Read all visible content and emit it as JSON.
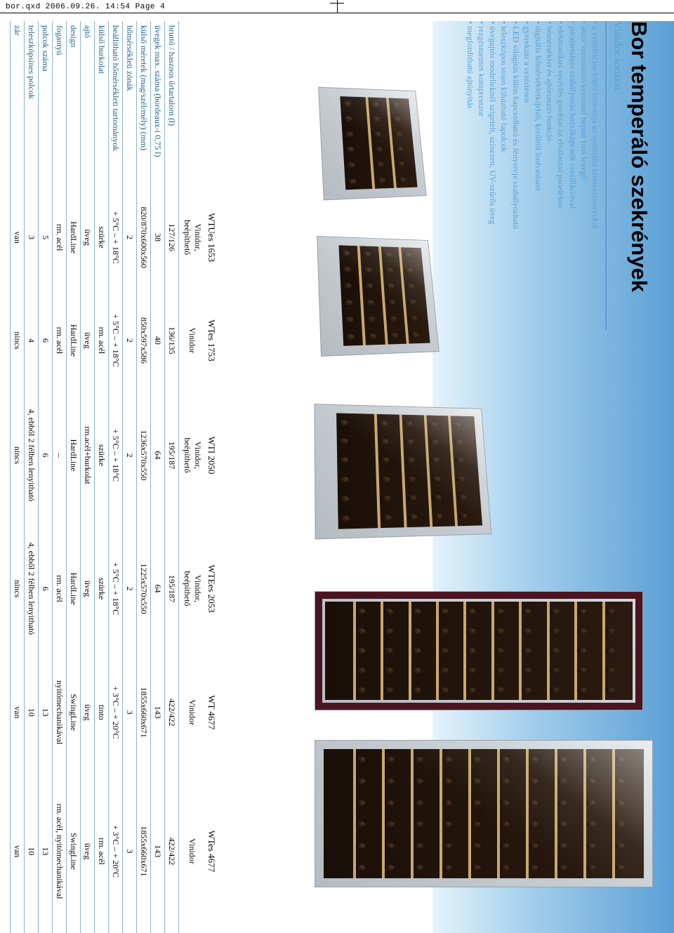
{
  "header": "bor.qxd  2006.09.26.  14:54  Page 4",
  "title": "Bor temperáló szekrények",
  "subtitle": "Vinidor sorozat",
  "bullets": [
    "a ventillációs hűtés biztosítja az optimális klímaviszonyokat",
    "aktív szénszűrőn keresztül bejutó friss levegő",
    "páratartalom szabályozás hozzákapcsolt ventillációval",
    "elektronikus vezérlés gombjai az elválasztó paneleken",
    "hőmérséklet és ajtóriasztó funkció",
    "digitális hőmérsékletkijelző, kívülről leolvasható",
    "gyerekzár a vezérlésen",
    "LED világítás külön kapcsolható és fényereje szabályozható",
    "teleszkópos sínen kihúzható fapolcok",
    "üvegajtós modelleknél szigetelt, színezett, UV-szűrős üveg",
    "rezgésmentes kompresszor",
    "megfordítható ajtónyitás"
  ],
  "spec_headers": [
    "bruttó / hasznos űrtartalom (l)",
    "üvegek max. száma (bordeaux-i 0,75 l)",
    "külső méretek (mag/szél/mély) (mm)",
    "hőmérsékleti zónák",
    "beállítható hőmérsékleti tartományok",
    "külső burkolat",
    "ajtó",
    "design",
    "fogantyú",
    "polcok száma",
    "teleszkópsínes polcok",
    "zár"
  ],
  "models": [
    {
      "name": "WTUes 1653",
      "series": "Vinidor, beépíthető",
      "vals": [
        "127/126",
        "38",
        "820/870x600x560",
        "2",
        "+ 5°C – + 18°C",
        "szürke",
        "üveg",
        "HardLine",
        "rm. acél",
        "5",
        "3",
        "van"
      ]
    },
    {
      "name": "WTes 1753",
      "series": "Vinidor",
      "vals": [
        "136/135",
        "40",
        "850x597x586",
        "2",
        "+ 5°C – + 18°C",
        "rm. acél",
        "üveg",
        "HardLine",
        "rm. acél",
        "6",
        "4",
        "nincs"
      ]
    },
    {
      "name": "WTI 2050",
      "series": "Vinidor, beépíthető",
      "vals": [
        "195/187",
        "64",
        "1236x570x550",
        "2",
        "+ 5°C – + 18°C",
        "szürke",
        "rm.acél+burkolat",
        "HardLine",
        "–",
        "6",
        "4, ebből 2 félben lenyitható",
        "nincs"
      ]
    },
    {
      "name": "WTEes 2053",
      "series": "Vinidor, beépíthető",
      "vals": [
        "195/187",
        "64",
        "1225x570x550",
        "2",
        "+ 5°C – + 18°C",
        "szürke",
        "üveg",
        "HardLine",
        "rm. acél",
        "6",
        "4, ebből 2 félben lenyitható",
        "nincs"
      ]
    },
    {
      "name": "WT 4677",
      "series": "Vinidor",
      "vals": [
        "422/422",
        "143",
        "1855x660x671",
        "3",
        "+ 3°C – + 20°C",
        "tinto",
        "üveg",
        "SwingLine",
        "nyitómechanikával",
        "13",
        "10",
        "van"
      ]
    },
    {
      "name": "WTes 4677",
      "series": "Vinidor",
      "vals": [
        "422/422",
        "143",
        "1855x660x671",
        "3",
        "+ 3°C – + 20°C",
        "rm. acél",
        "üveg",
        "SwingLine",
        "rm. acél, nyitómechanikával",
        "13",
        "10",
        "van"
      ]
    }
  ],
  "colors": {
    "title": "#000000",
    "accent": "#5b9fd4",
    "rule": "#87b7dd",
    "header_text": "#1a5a8a",
    "gradient_start": "#e5f3fb",
    "gradient_end": "#5b9fd4"
  }
}
